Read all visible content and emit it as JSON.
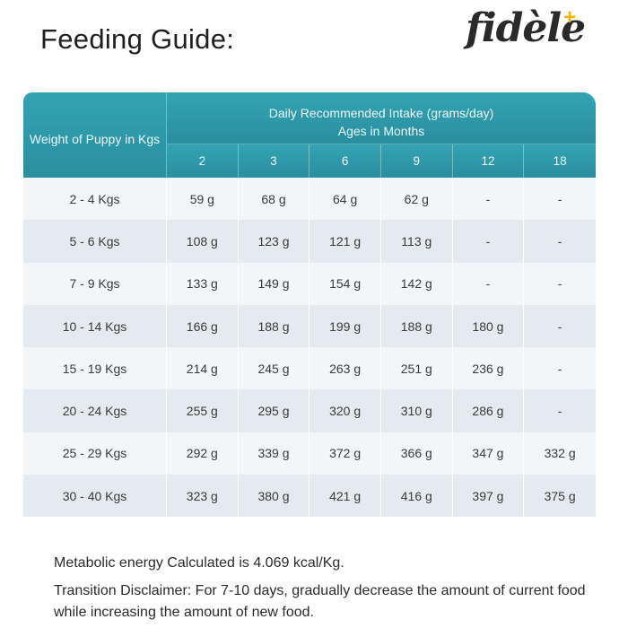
{
  "header": {
    "title": "Feeding Guide:",
    "logo_text": "fidèle",
    "logo_plus": "+",
    "logo_plus_color": "#f4b400"
  },
  "table": {
    "weight_header": "Weight of Puppy in Kgs",
    "intake_header_line1": "Daily Recommended Intake (grams/day)",
    "intake_header_line2": "Ages in Months",
    "header_color": "#2f9aaa",
    "ages": [
      "2",
      "3",
      "6",
      "9",
      "12",
      "18"
    ],
    "rows": [
      {
        "weight": "2 - 4 Kgs",
        "values": [
          "59 g",
          "68 g",
          "64 g",
          "62 g",
          "-",
          "-"
        ]
      },
      {
        "weight": "5 - 6 Kgs",
        "values": [
          "108 g",
          "123 g",
          "121 g",
          "113 g",
          "-",
          "-"
        ]
      },
      {
        "weight": "7 - 9 Kgs",
        "values": [
          "133 g",
          "149 g",
          "154 g",
          "142 g",
          "-",
          "-"
        ]
      },
      {
        "weight": "10 - 14 Kgs",
        "values": [
          "166 g",
          "188 g",
          "199 g",
          "188 g",
          "180 g",
          "-"
        ]
      },
      {
        "weight": "15 - 19 Kgs",
        "values": [
          "214 g",
          "245 g",
          "263 g",
          "251 g",
          "236 g",
          "-"
        ]
      },
      {
        "weight": "20 - 24 Kgs",
        "values": [
          "255 g",
          "295 g",
          "320 g",
          "310 g",
          "286 g",
          "-"
        ]
      },
      {
        "weight": "25 - 29 Kgs",
        "values": [
          "292 g",
          "339 g",
          "372 g",
          "366 g",
          "347 g",
          "332 g"
        ]
      },
      {
        "weight": "30 - 40 Kgs",
        "values": [
          "323 g",
          "380 g",
          "421 g",
          "416 g",
          "397 g",
          "375 g"
        ]
      }
    ]
  },
  "notes": {
    "energy": "Metabolic energy Calculated is 4.069 kcal/Kg.",
    "transition": "Transition Disclaimer: For 7-10 days, gradually decrease the amount of current food while increasing the amount of new food."
  }
}
